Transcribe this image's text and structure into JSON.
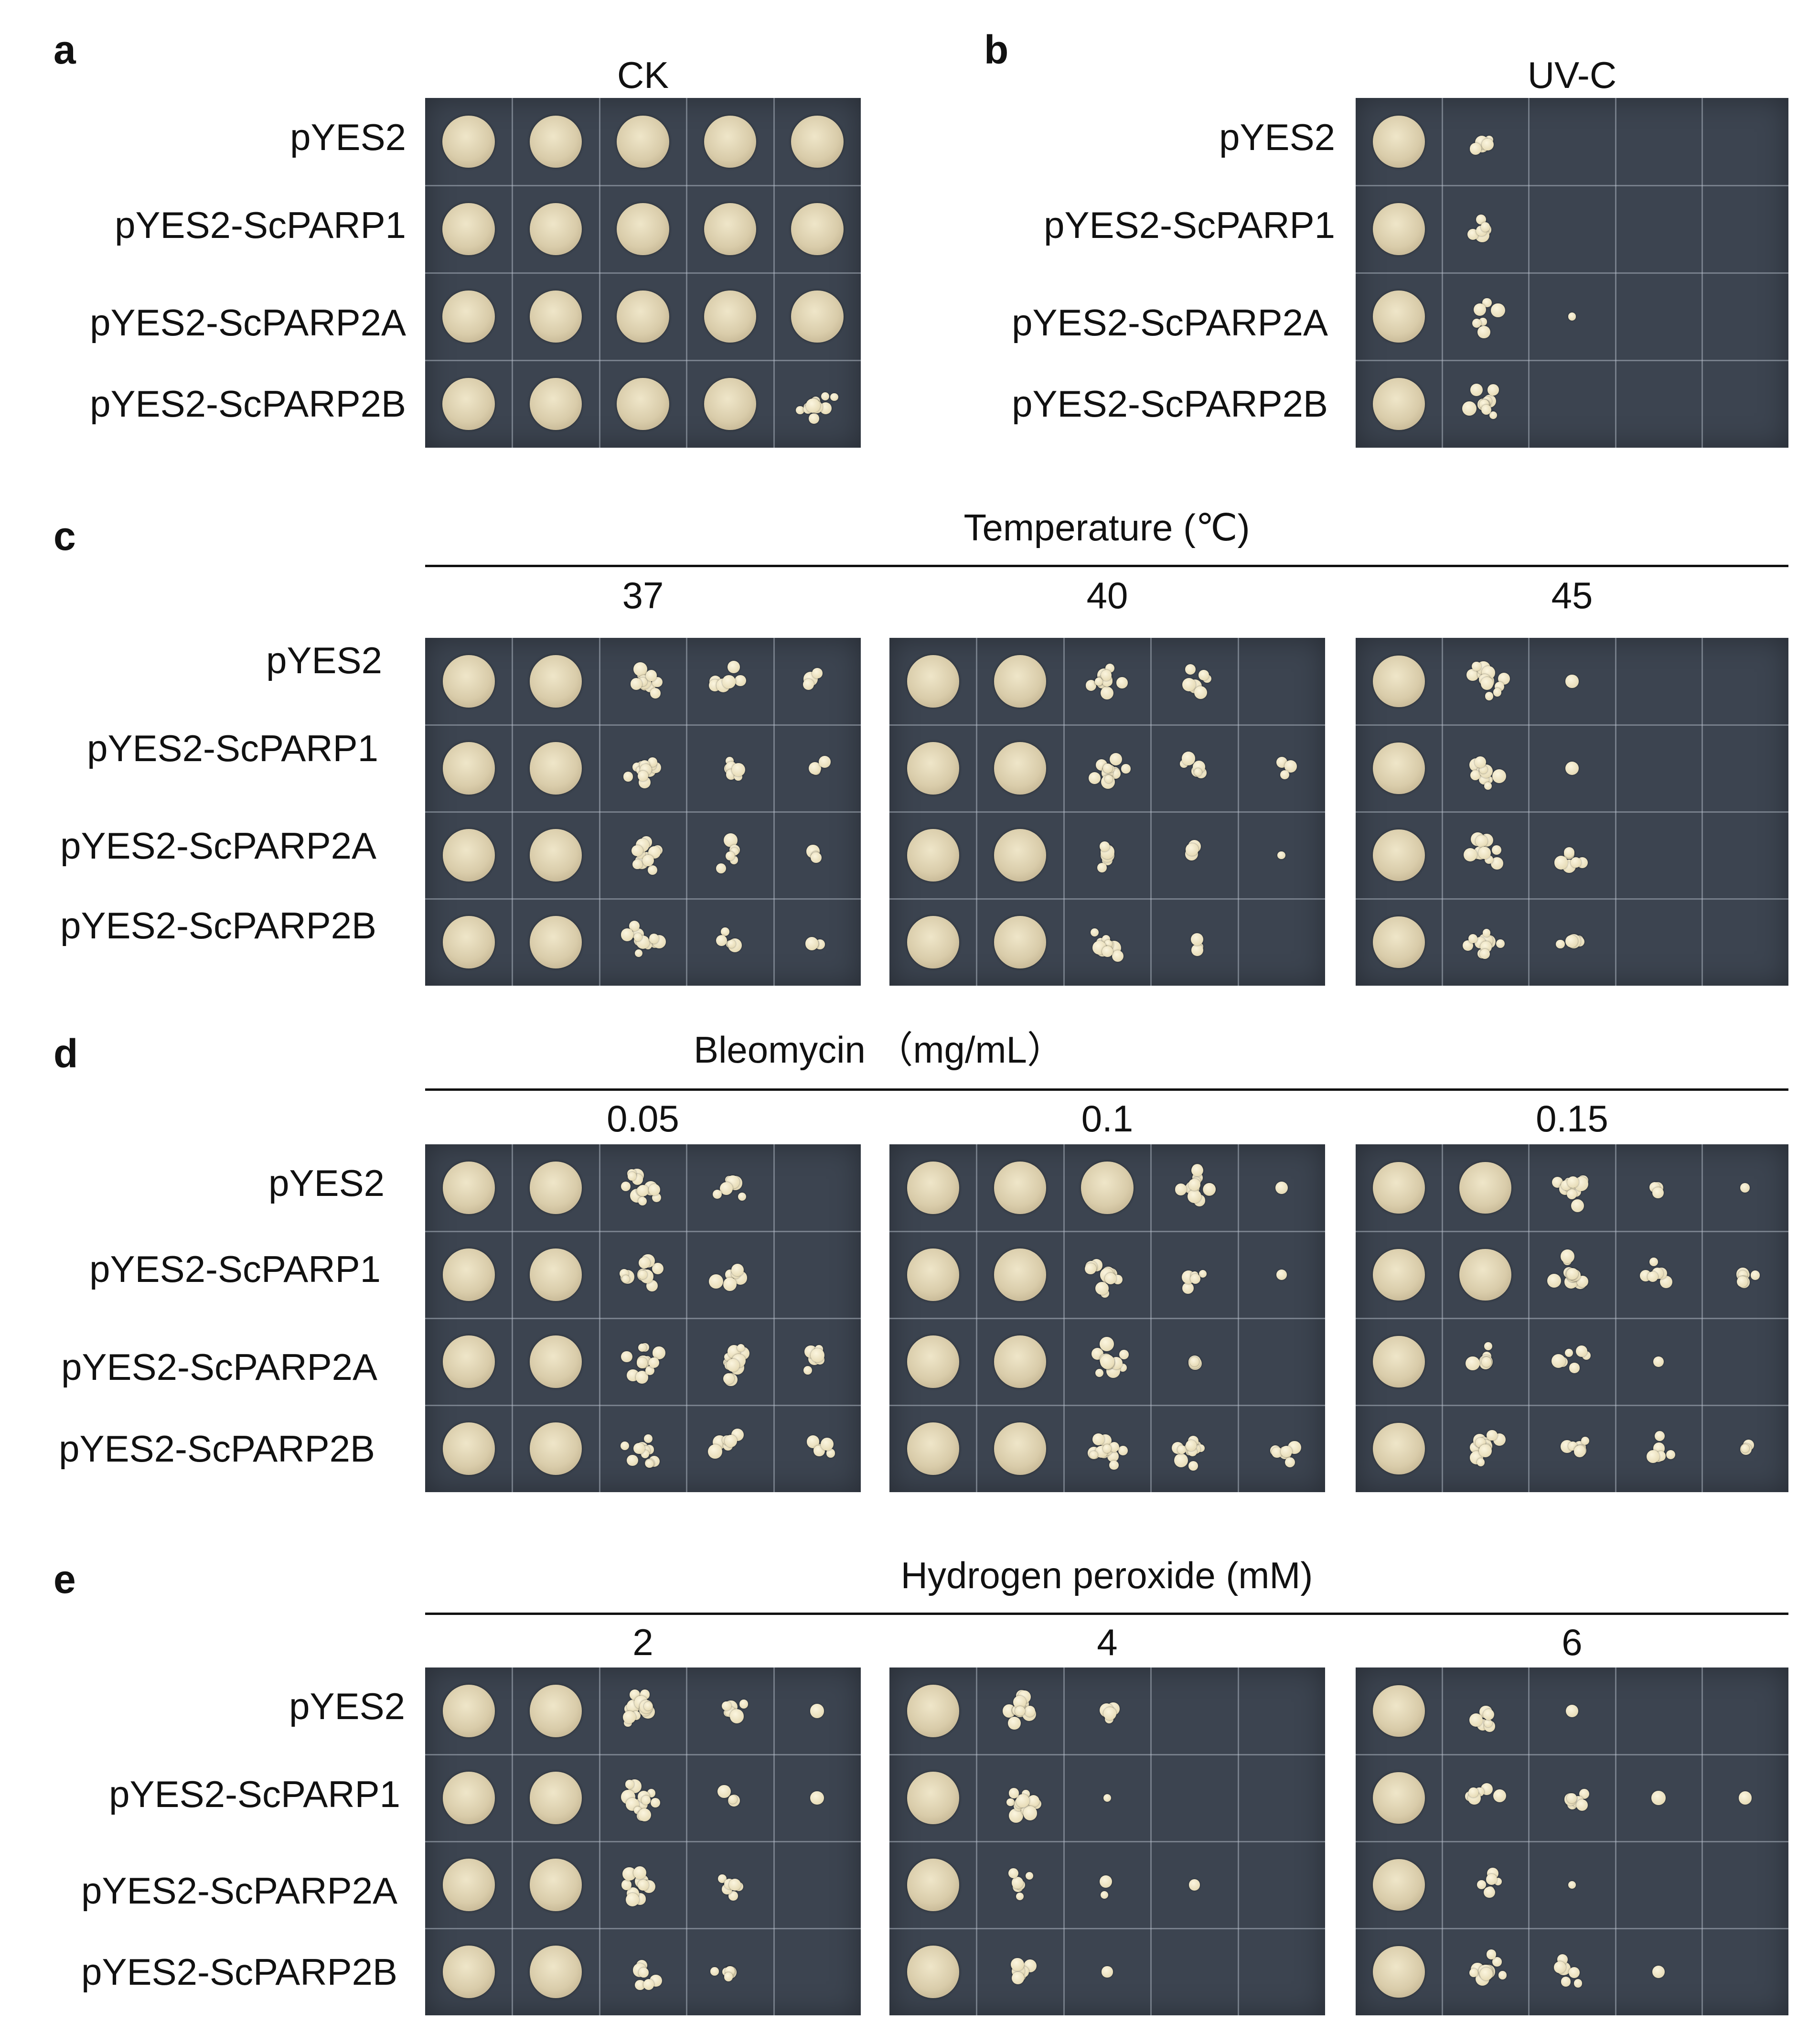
{
  "panels": {
    "a": {
      "letter": "a",
      "header": "CK",
      "rows": [
        "pYES2",
        "pYES2-ScPARP1",
        "pYES2-ScPARP2A",
        "pYES2-ScPARP2B"
      ]
    },
    "b": {
      "letter": "b",
      "header": "UV-C",
      "rows": [
        "pYES2",
        "pYES2-ScPARP1",
        "pYES2-ScPARP2A",
        "pYES2-ScPARP2B"
      ]
    },
    "c": {
      "letter": "c",
      "title": "Temperature (℃)",
      "conditions": [
        "37",
        "40",
        "45"
      ],
      "rows": [
        "pYES2",
        "pYES2-ScPARP1",
        "pYES2-ScPARP2A",
        "pYES2-ScPARP2B"
      ]
    },
    "d": {
      "letter": "d",
      "title": "Bleomycin （mg/mL）",
      "conditions": [
        "0.05",
        "0.1",
        "0.15"
      ],
      "rows": [
        "pYES2",
        "pYES2-ScPARP1",
        "pYES2-ScPARP2A",
        "pYES2-ScPARP2B"
      ]
    },
    "e": {
      "letter": "e",
      "title": "Hydrogen peroxide (mM)",
      "conditions": [
        "2",
        "4",
        "6"
      ],
      "rows": [
        "pYES2",
        "pYES2-ScPARP1",
        "pYES2-ScPARP2A",
        "pYES2-ScPARP2B"
      ]
    }
  },
  "plates": {
    "a": [
      [
        5,
        5,
        5,
        5,
        5
      ],
      [
        5,
        5,
        5,
        5,
        5
      ],
      [
        5,
        5,
        5,
        5,
        5
      ],
      [
        5,
        5,
        5,
        5,
        4
      ]
    ],
    "b": [
      [
        5,
        3,
        0,
        0,
        0
      ],
      [
        5,
        3,
        0,
        0,
        0
      ],
      [
        5,
        3,
        1,
        0,
        0
      ],
      [
        5,
        4,
        0,
        0,
        0
      ]
    ],
    "c37": [
      [
        5,
        5,
        4,
        3,
        2
      ],
      [
        5,
        5,
        4,
        3,
        2
      ],
      [
        5,
        5,
        4,
        3,
        2
      ],
      [
        5,
        5,
        4,
        3,
        2
      ]
    ],
    "c40": [
      [
        5,
        5,
        4,
        3,
        0
      ],
      [
        5,
        5,
        4,
        3,
        2
      ],
      [
        5,
        5,
        3,
        2,
        1
      ],
      [
        5,
        5,
        4,
        2,
        0
      ]
    ],
    "c45": [
      [
        5,
        4,
        1,
        0,
        0
      ],
      [
        5,
        4,
        1,
        0,
        0
      ],
      [
        5,
        4,
        3,
        0,
        0
      ],
      [
        5,
        4,
        3,
        0,
        0
      ]
    ],
    "d005": [
      [
        5,
        5,
        4,
        3,
        0
      ],
      [
        5,
        5,
        4,
        3,
        0
      ],
      [
        5,
        5,
        4,
        4,
        3
      ],
      [
        5,
        5,
        4,
        3,
        3
      ]
    ],
    "d01": [
      [
        5,
        5,
        5,
        4,
        1
      ],
      [
        5,
        5,
        4,
        3,
        1
      ],
      [
        5,
        5,
        4,
        2,
        0
      ],
      [
        5,
        5,
        4,
        4,
        3
      ]
    ],
    "d015": [
      [
        5,
        5,
        4,
        2,
        1
      ],
      [
        5,
        5,
        4,
        3,
        3
      ],
      [
        5,
        3,
        3,
        1,
        0
      ],
      [
        5,
        4,
        3,
        3,
        2
      ]
    ],
    "e2": [
      [
        5,
        5,
        4,
        3,
        1
      ],
      [
        5,
        5,
        4,
        2,
        1
      ],
      [
        5,
        5,
        4,
        3,
        0
      ],
      [
        5,
        5,
        3,
        3,
        0
      ]
    ],
    "e4": [
      [
        5,
        4,
        3,
        0,
        0
      ],
      [
        5,
        4,
        1,
        0,
        0
      ],
      [
        5,
        3,
        2,
        1,
        0
      ],
      [
        5,
        3,
        1,
        0,
        0
      ]
    ],
    "e6": [
      [
        5,
        3,
        1,
        0,
        0
      ],
      [
        5,
        3,
        3,
        1,
        1
      ],
      [
        5,
        3,
        1,
        0,
        0
      ],
      [
        5,
        4,
        3,
        1,
        0
      ]
    ]
  }
}
